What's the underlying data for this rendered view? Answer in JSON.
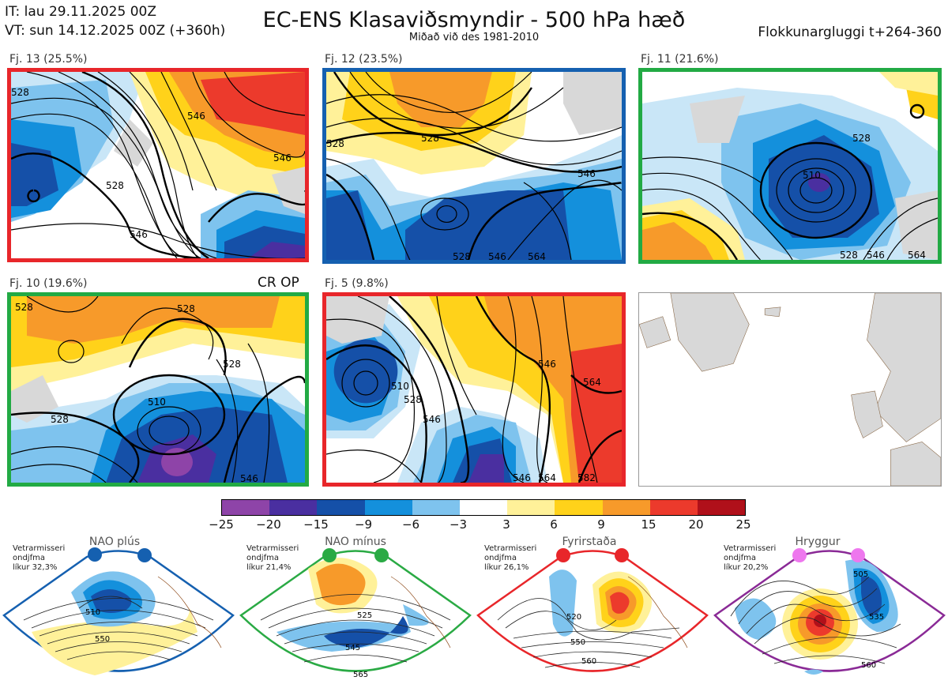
{
  "header": {
    "it_line": "IT: lau 29.11.2025 00Z",
    "vt_line": "VT: sun 14.12.2025 00Z  (+360h)",
    "title": "EC-ENS Klasaviðsmyndir - 500 hPa hæð",
    "subtitle": "Miðað við des 1981-2010",
    "window": "Flokkunargluggi t+264-360"
  },
  "panels": [
    {
      "label": "Fj. 13 (25.5%)",
      "border": "#e8262a",
      "contours": [
        "546",
        "546",
        "528",
        "546",
        "528"
      ]
    },
    {
      "label": "Fj. 12 (23.5%)",
      "border": "#1560b0",
      "contours": [
        "528",
        "528",
        "546",
        "528",
        "546",
        "564"
      ]
    },
    {
      "label": "Fj. 11 (21.6%)",
      "border": "#22aa44",
      "contours": [
        "528",
        "510",
        "528",
        "546",
        "564"
      ]
    },
    {
      "label": "Fj. 10 (19.6%)",
      "border": "#22aa44",
      "contours": [
        "528",
        "528",
        "510",
        "528",
        "546",
        "528"
      ],
      "tag": "CR OP"
    },
    {
      "label": "Fj. 5 (9.8%)",
      "border": "#e8262a",
      "contours": [
        "510",
        "528",
        "546",
        "546",
        "564",
        "546",
        "564",
        "582"
      ]
    }
  ],
  "colorbar": {
    "ticks": [
      "−25",
      "−20",
      "−15",
      "−9",
      "−6",
      "−3",
      "3",
      "6",
      "9",
      "15",
      "20",
      "25"
    ],
    "colors": [
      "#8e44a8",
      "#4a2fa0",
      "#1550a8",
      "#1490dc",
      "#7ec3ee",
      "#ffffff",
      "#fff199",
      "#ffd21a",
      "#f79a2a",
      "#ec3a2c",
      "#b0101a"
    ]
  },
  "regimes": [
    {
      "name": "NAO plús",
      "text": [
        "Vetrarmisseri",
        "ondjfma",
        "líkur 32,3%"
      ],
      "dot": "#1560b0",
      "border": "#1560b0",
      "labels": [
        "510",
        "550"
      ]
    },
    {
      "name": "NAO mínus",
      "text": [
        "Vetrarmisseri",
        "ondjfma",
        "líkur 21,4%"
      ],
      "dot": "#2aaa44",
      "border": "#2aaa44",
      "labels": [
        "525",
        "545",
        "565"
      ]
    },
    {
      "name": "Fyrirstaða",
      "text": [
        "Vetrarmisseri",
        "ondjfma",
        "líkur 26,1%"
      ],
      "dot": "#e8262a",
      "border": "#e8262a",
      "labels": [
        "520",
        "550",
        "560"
      ]
    },
    {
      "name": "Hryggur",
      "text": [
        "Vetrarmisseri",
        "ondjfma",
        "líkur 20,2%"
      ],
      "dot": "#ee77ee",
      "border": "#8a2a96",
      "labels": [
        "505",
        "535",
        "560"
      ]
    }
  ]
}
